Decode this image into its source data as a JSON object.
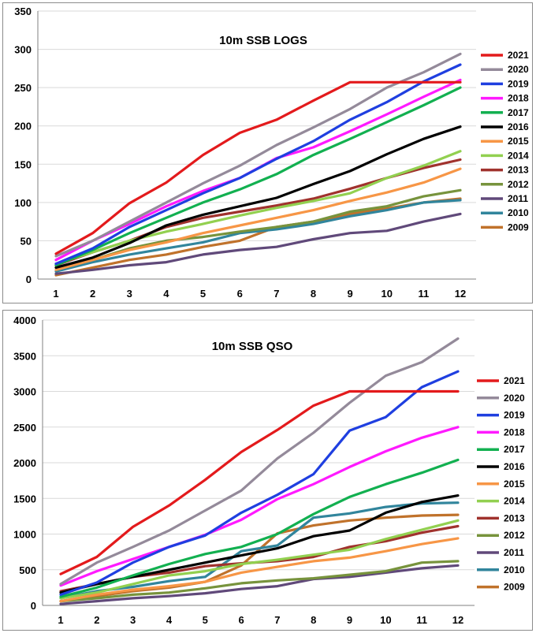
{
  "chart_data": [
    {
      "type": "line",
      "title": "10m SSB LOGS",
      "x": [
        1,
        2,
        3,
        4,
        5,
        6,
        7,
        8,
        9,
        10,
        11,
        12
      ],
      "ylim": [
        0,
        350
      ],
      "yticks": [
        0,
        50,
        100,
        150,
        200,
        250,
        300,
        350
      ],
      "grid": "horizontal",
      "legend": "right",
      "series": [
        {
          "name": "2021",
          "color": "#e31a1c",
          "values": [
            33,
            60,
            99,
            126,
            162,
            191,
            208,
            233,
            257,
            257,
            257,
            257
          ]
        },
        {
          "name": "2020",
          "color": "#948a9a",
          "values": [
            30,
            50,
            75,
            100,
            125,
            148,
            175,
            198,
            222,
            250,
            270,
            294
          ]
        },
        {
          "name": "2019",
          "color": "#1f3fe0",
          "values": [
            20,
            40,
            68,
            90,
            112,
            132,
            157,
            180,
            208,
            231,
            258,
            280
          ]
        },
        {
          "name": "2018",
          "color": "#ff1aff",
          "values": [
            25,
            50,
            72,
            95,
            115,
            132,
            158,
            172,
            193,
            215,
            238,
            260
          ]
        },
        {
          "name": "2017",
          "color": "#12b050",
          "values": [
            18,
            38,
            60,
            80,
            100,
            117,
            137,
            162,
            183,
            205,
            227,
            250
          ]
        },
        {
          "name": "2016",
          "color": "#000000",
          "values": [
            15,
            28,
            47,
            70,
            84,
            95,
            106,
            124,
            141,
            163,
            183,
            199
          ]
        },
        {
          "name": "2015",
          "color": "#f79646",
          "values": [
            12,
            25,
            38,
            48,
            60,
            70,
            80,
            90,
            102,
            113,
            126,
            144
          ]
        },
        {
          "name": "2014",
          "color": "#92d050",
          "values": [
            20,
            35,
            50,
            62,
            72,
            83,
            93,
            102,
            112,
            132,
            148,
            167
          ]
        },
        {
          "name": "2013",
          "color": "#a0322d",
          "values": [
            18,
            35,
            50,
            68,
            80,
            88,
            96,
            105,
            118,
            132,
            145,
            156
          ]
        },
        {
          "name": "2012",
          "color": "#77933c",
          "values": [
            15,
            25,
            40,
            50,
            55,
            62,
            68,
            75,
            88,
            95,
            108,
            116
          ]
        },
        {
          "name": "2011",
          "color": "#60497a",
          "values": [
            7,
            12,
            18,
            22,
            32,
            38,
            42,
            52,
            60,
            63,
            75,
            85
          ]
        },
        {
          "name": "2010",
          "color": "#31859c",
          "values": [
            10,
            22,
            32,
            40,
            48,
            60,
            65,
            72,
            82,
            90,
            100,
            103
          ]
        },
        {
          "name": "2009",
          "color": "#c0722b",
          "values": [
            5,
            15,
            25,
            32,
            42,
            50,
            68,
            75,
            85,
            92,
            100,
            105
          ]
        }
      ]
    },
    {
      "type": "line",
      "title": "10m SSB QSO",
      "x": [
        1,
        2,
        3,
        4,
        5,
        6,
        7,
        8,
        9,
        10,
        11,
        12
      ],
      "ylim": [
        0,
        4000
      ],
      "yticks": [
        0,
        500,
        1000,
        1500,
        2000,
        2500,
        3000,
        3500,
        4000
      ],
      "grid": "horizontal",
      "legend": "right",
      "series": [
        {
          "name": "2021",
          "color": "#e31a1c",
          "values": [
            440,
            680,
            1100,
            1400,
            1760,
            2150,
            2460,
            2800,
            3000,
            3000,
            3000,
            3000
          ]
        },
        {
          "name": "2020",
          "color": "#948a9a",
          "values": [
            300,
            600,
            820,
            1050,
            1330,
            1610,
            2060,
            2420,
            2840,
            3220,
            3410,
            3740
          ]
        },
        {
          "name": "2019",
          "color": "#1f3fe0",
          "values": [
            150,
            320,
            600,
            820,
            980,
            1300,
            1550,
            1840,
            2450,
            2640,
            3060,
            3280
          ]
        },
        {
          "name": "2018",
          "color": "#ff1aff",
          "values": [
            280,
            480,
            650,
            820,
            990,
            1200,
            1490,
            1700,
            1940,
            2160,
            2350,
            2500
          ]
        },
        {
          "name": "2017",
          "color": "#12b050",
          "values": [
            120,
            250,
            420,
            580,
            720,
            820,
            1000,
            1280,
            1520,
            1700,
            1860,
            2040
          ]
        },
        {
          "name": "2016",
          "color": "#000000",
          "values": [
            180,
            300,
            400,
            500,
            600,
            700,
            800,
            970,
            1050,
            1300,
            1450,
            1540
          ]
        },
        {
          "name": "2015",
          "color": "#f79646",
          "values": [
            60,
            150,
            220,
            270,
            330,
            460,
            540,
            620,
            670,
            760,
            860,
            940
          ]
        },
        {
          "name": "2014",
          "color": "#92d050",
          "values": [
            100,
            180,
            300,
            420,
            480,
            580,
            640,
            710,
            780,
            930,
            1060,
            1190
          ]
        },
        {
          "name": "2013",
          "color": "#a0322d",
          "values": [
            200,
            300,
            400,
            460,
            550,
            590,
            620,
            680,
            820,
            900,
            1020,
            1110
          ]
        },
        {
          "name": "2012",
          "color": "#77933c",
          "values": [
            60,
            100,
            150,
            180,
            240,
            310,
            350,
            380,
            430,
            480,
            600,
            620
          ]
        },
        {
          "name": "2011",
          "color": "#60497a",
          "values": [
            20,
            60,
            100,
            130,
            170,
            230,
            270,
            370,
            400,
            460,
            520,
            560
          ]
        },
        {
          "name": "2010",
          "color": "#31859c",
          "values": [
            100,
            200,
            260,
            340,
            400,
            760,
            840,
            1230,
            1290,
            1380,
            1430,
            1440
          ]
        },
        {
          "name": "2009",
          "color": "#c0722b",
          "values": [
            60,
            130,
            200,
            250,
            330,
            560,
            1010,
            1120,
            1190,
            1230,
            1260,
            1270
          ]
        }
      ]
    }
  ]
}
